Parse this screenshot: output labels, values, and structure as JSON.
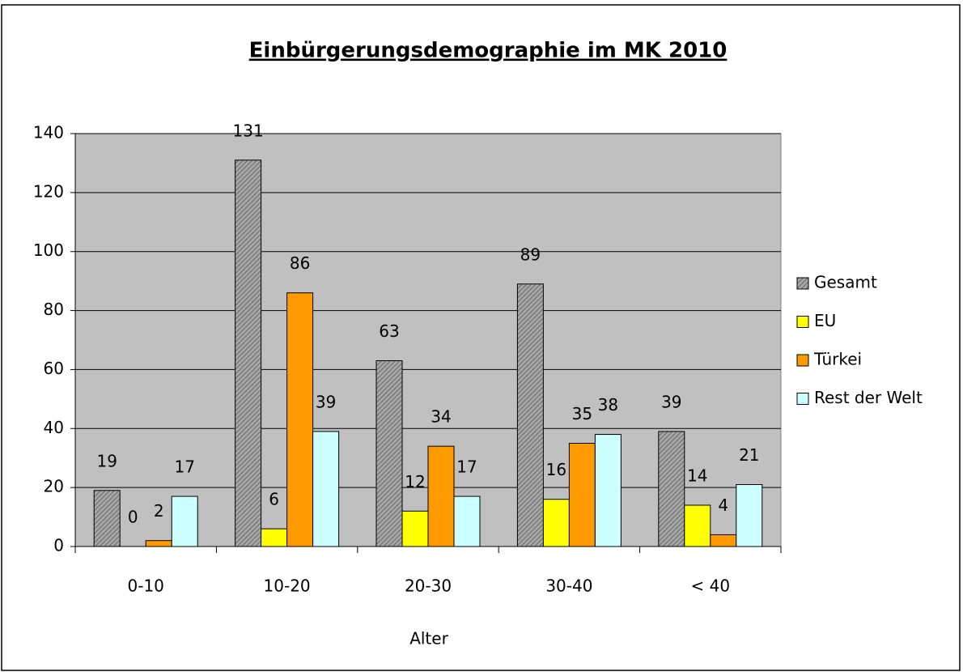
{
  "chart_data": {
    "type": "bar",
    "title": "Einbürgerungsdemographie im MK 2010",
    "x_label": "Alter",
    "categories": [
      "0-10",
      "10-20",
      "20-30",
      "30-40",
      "< 40"
    ],
    "series": [
      {
        "name": "Gesamt",
        "color": "#a6a6a6",
        "values": [
          19,
          131,
          63,
          89,
          39
        ]
      },
      {
        "name": "EU",
        "color": "#ffff00",
        "values": [
          0,
          6,
          12,
          16,
          14
        ]
      },
      {
        "name": "Türkei",
        "color": "#ff9900",
        "values": [
          2,
          86,
          34,
          35,
          4
        ]
      },
      {
        "name": "Rest der Welt",
        "color": "#ccffff",
        "values": [
          17,
          39,
          17,
          38,
          21
        ]
      }
    ],
    "ylim": [
      0,
      140
    ],
    "yticks": [
      0,
      20,
      40,
      60,
      80,
      100,
      120,
      140
    ],
    "grid": true,
    "legend": "right",
    "hatched_series": "Gesamt"
  }
}
